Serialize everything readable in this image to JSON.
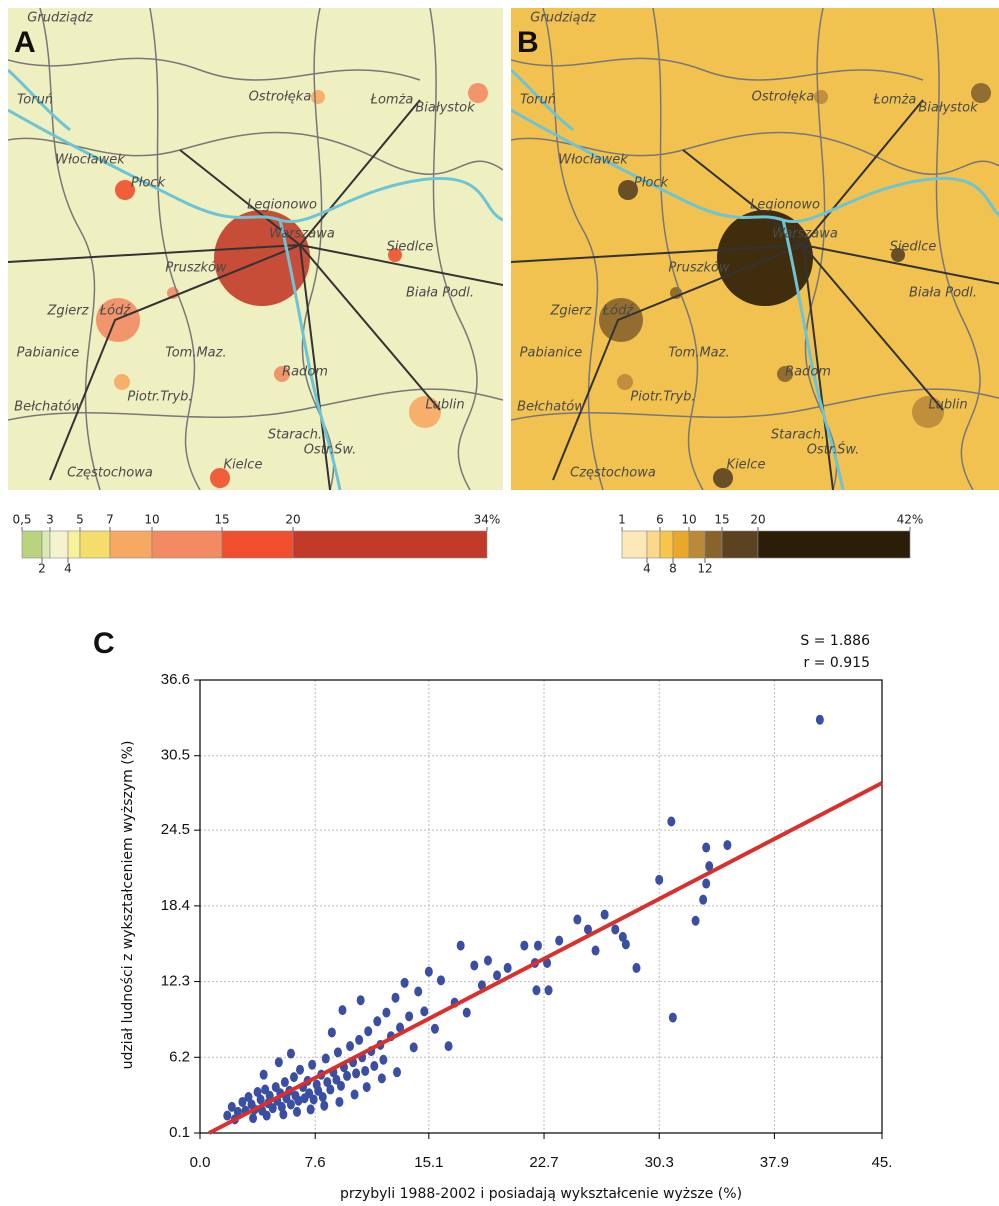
{
  "maps": {
    "panels": [
      {
        "label": "A",
        "base_color": "#eef0c2"
      },
      {
        "label": "B",
        "base_color": "#f2c251"
      }
    ],
    "cities": [
      "Grudziądz",
      "Toruń",
      "Włocławek",
      "Płock",
      "Ostrołęka",
      "Łomża",
      "Białystok",
      "Legionowo",
      "Warszawa",
      "Siedlce",
      "Pruszków",
      "Biała Podl.",
      "Zgierz",
      "Łódź",
      "Pabianice",
      "Tom.Maz.",
      "Radom",
      "Bełchatów",
      "Piotr.Tryb.",
      "Lublin",
      "Starach.",
      "Ostr.Św.",
      "Kielce",
      "Częstochowa"
    ],
    "legends": [
      {
        "breaks": [
          {
            "value": 0.5,
            "label": "0,5"
          },
          2,
          3,
          4,
          5,
          7,
          10,
          15,
          20,
          {
            "value": 34,
            "label": "34%"
          }
        ],
        "colors": [
          "#b9d37e",
          "#dde8b4",
          "#f5f3cf",
          "#f7f19a",
          "#f4dd6a",
          "#f7a963",
          "#f28a63",
          "#f04e2c",
          "#c23b2a"
        ]
      },
      {
        "breaks": [
          1,
          4,
          6,
          8,
          10,
          12,
          15,
          20,
          {
            "value": 42,
            "label": "42%"
          }
        ],
        "colors": [
          "#fde9b8",
          "#fcd98a",
          "#f6c64a",
          "#e9a82a",
          "#b98a3a",
          "#86642b",
          "#5a4320",
          "#2b1d07"
        ]
      }
    ]
  },
  "chart_data": {
    "type": "scatter",
    "panel_label": "C",
    "annotations": [
      "S = 1.886",
      "r = 0.915"
    ],
    "x_label": "przybyli 1988-2002 i posiadają wykształcenie wyższe (%)",
    "y_label": "udział ludności z wykształceniem wyższym (%)",
    "xlim": [
      0,
      45
    ],
    "ylim": [
      0.1,
      36.6
    ],
    "xticks": [
      {
        "value": 0,
        "label": "0.0"
      },
      7.6,
      15.1,
      22.7,
      30.3,
      37.9,
      {
        "value": 45,
        "label": "45."
      }
    ],
    "yticks": [
      0.1,
      6.2,
      12.3,
      18.4,
      24.5,
      30.5,
      36.6
    ],
    "grid": true,
    "color": "#3a4ea3",
    "x": [
      1.8,
      2.1,
      2.5,
      2.8,
      3.0,
      3.2,
      3.4,
      3.6,
      3.8,
      4.0,
      4.1,
      4.3,
      4.5,
      4.6,
      4.8,
      5.0,
      5.1,
      5.3,
      5.4,
      5.6,
      5.7,
      5.9,
      6.0,
      6.2,
      6.3,
      6.5,
      6.6,
      6.8,
      6.9,
      7.1,
      7.2,
      7.4,
      7.5,
      7.7,
      7.8,
      8.0,
      8.1,
      8.3,
      8.4,
      8.6,
      8.8,
      9.0,
      9.1,
      9.3,
      9.5,
      9.7,
      9.9,
      10.1,
      10.3,
      10.5,
      10.7,
      10.9,
      11.1,
      11.3,
      11.5,
      11.7,
      11.9,
      12.1,
      12.3,
      12.6,
      12.9,
      13.2,
      13.5,
      13.8,
      14.1,
      14.4,
      14.8,
      15.1,
      15.5,
      15.9,
      16.4,
      16.8,
      17.2,
      17.6,
      18.1,
      18.6,
      19.0,
      19.6,
      20.3,
      21.4,
      22.1,
      22.3,
      22.2,
      23.0,
      22.9,
      23.7,
      24.9,
      25.6,
      26.1,
      26.7,
      27.4,
      27.9,
      28.8,
      28.1,
      30.3,
      31.1,
      31.2,
      32.7,
      33.2,
      33.4,
      33.6,
      33.4,
      34.8,
      40.9,
      2.3,
      3.5,
      4.4,
      5.5,
      6.4,
      7.3,
      8.2,
      9.2,
      10.2,
      11.0,
      12.0,
      13.0,
      8.7,
      6.0,
      5.2,
      4.2,
      9.4,
      10.6
    ],
    "values": [
      1.5,
      2.2,
      1.8,
      2.6,
      1.9,
      3.0,
      2.4,
      2.0,
      3.4,
      2.8,
      1.9,
      3.6,
      2.5,
      3.1,
      2.1,
      3.8,
      2.7,
      3.3,
      2.2,
      4.2,
      2.9,
      3.5,
      2.4,
      4.6,
      3.1,
      2.7,
      5.2,
      3.8,
      2.9,
      4.3,
      3.3,
      5.6,
      2.8,
      4.0,
      3.5,
      4.8,
      3.0,
      6.1,
      4.2,
      3.6,
      5.0,
      4.4,
      6.6,
      3.9,
      5.4,
      4.7,
      7.1,
      5.8,
      4.9,
      7.6,
      6.2,
      5.1,
      8.3,
      6.7,
      5.5,
      9.1,
      7.2,
      6.0,
      9.8,
      7.9,
      11.0,
      8.6,
      12.2,
      9.5,
      7.0,
      11.5,
      9.9,
      13.1,
      8.5,
      12.4,
      7.1,
      10.6,
      15.2,
      9.8,
      13.6,
      12.0,
      14.0,
      12.8,
      13.4,
      15.2,
      13.8,
      15.2,
      11.6,
      11.6,
      13.8,
      15.6,
      17.3,
      16.5,
      14.8,
      17.7,
      16.5,
      15.9,
      13.4,
      15.3,
      20.5,
      25.2,
      9.4,
      17.2,
      18.9,
      20.2,
      21.6,
      23.1,
      23.3,
      33.4,
      1.2,
      1.3,
      1.5,
      1.6,
      1.8,
      2.0,
      2.3,
      2.6,
      3.2,
      3.8,
      4.5,
      5.0,
      8.2,
      6.5,
      5.8,
      4.8,
      10.0,
      10.8
    ],
    "fit_line": {
      "x": [
        0.6,
        45
      ],
      "values": [
        0.1,
        28.3
      ],
      "color": "#d8302c"
    }
  }
}
